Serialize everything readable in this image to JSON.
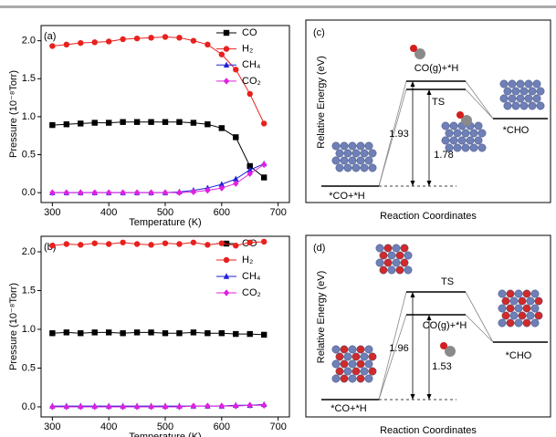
{
  "chart_data": [
    {
      "type": "line",
      "label": "(a)",
      "x_label": "Temperature (K)",
      "y_label": "Pressure (10⁻⁸Torr)",
      "x": [
        300,
        325,
        350,
        375,
        400,
        425,
        450,
        475,
        500,
        525,
        550,
        575,
        600,
        625,
        650,
        675
      ],
      "series": [
        {
          "name": "CO",
          "color": "#000000",
          "marker": "square",
          "values": [
            0.89,
            0.9,
            0.91,
            0.92,
            0.92,
            0.93,
            0.93,
            0.93,
            0.93,
            0.93,
            0.92,
            0.9,
            0.85,
            0.73,
            0.35,
            0.2
          ]
        },
        {
          "name": "H₂",
          "color": "#e8201e",
          "marker": "circle",
          "values": [
            1.93,
            1.95,
            1.97,
            1.98,
            1.99,
            2.02,
            2.03,
            2.04,
            2.05,
            2.04,
            2.0,
            1.95,
            1.82,
            1.62,
            1.3,
            0.91
          ]
        },
        {
          "name": "CH₄",
          "color": "#1f1fd6",
          "marker": "triangle",
          "values": [
            0.0,
            0.0,
            0.0,
            0.0,
            0.0,
            0.0,
            0.0,
            0.0,
            0.0,
            0.01,
            0.03,
            0.06,
            0.11,
            0.18,
            0.3,
            0.38
          ]
        },
        {
          "name": "CO₂",
          "color": "#e020e0",
          "marker": "diamond",
          "values": [
            0.0,
            0.0,
            0.0,
            0.0,
            0.0,
            0.0,
            0.0,
            0.0,
            0.0,
            0.0,
            0.01,
            0.03,
            0.06,
            0.12,
            0.25,
            0.37
          ]
        }
      ],
      "xlim": [
        280,
        720
      ],
      "ylim": [
        -0.13,
        2.2
      ],
      "xticks": [
        300,
        400,
        500,
        600,
        700
      ],
      "yticks": [
        {
          "value": 0,
          "label": "0.0"
        },
        0.5,
        {
          "value": 1,
          "label": "1.0"
        },
        1.5,
        {
          "value": 2,
          "label": "2.0"
        }
      ],
      "legend": "upper right"
    },
    {
      "type": "line",
      "label": "(b)",
      "x_label": "Temperature (K)",
      "y_label": "Pressure (10⁻⁸Torr)",
      "x": [
        300,
        325,
        350,
        375,
        400,
        425,
        450,
        475,
        500,
        525,
        550,
        575,
        600,
        625,
        650,
        675
      ],
      "series": [
        {
          "name": "CO",
          "color": "#000000",
          "marker": "square",
          "values": [
            0.95,
            0.96,
            0.95,
            0.96,
            0.96,
            0.95,
            0.96,
            0.96,
            0.95,
            0.95,
            0.96,
            0.95,
            0.95,
            0.94,
            0.94,
            0.93
          ]
        },
        {
          "name": "H₂",
          "color": "#e8201e",
          "marker": "circle",
          "values": [
            2.08,
            2.1,
            2.09,
            2.11,
            2.1,
            2.12,
            2.1,
            2.09,
            2.11,
            2.1,
            2.12,
            2.09,
            2.11,
            2.08,
            2.12,
            2.13
          ]
        },
        {
          "name": "CH₄",
          "color": "#1f1fd6",
          "marker": "triangle",
          "values": [
            0.01,
            0.01,
            0.01,
            0.01,
            0.01,
            0.01,
            0.01,
            0.01,
            0.01,
            0.01,
            0.01,
            0.01,
            0.01,
            0.02,
            0.02,
            0.03
          ]
        },
        {
          "name": "CO₂",
          "color": "#e020e0",
          "marker": "diamond",
          "values": [
            0.0,
            0.0,
            0.0,
            0.0,
            0.0,
            0.0,
            0.0,
            0.0,
            0.0,
            0.0,
            0.01,
            0.01,
            0.01,
            0.01,
            0.02,
            0.02
          ]
        }
      ],
      "xlim": [
        280,
        720
      ],
      "ylim": [
        -0.13,
        2.2
      ],
      "xticks": [
        300,
        400,
        500,
        600,
        700
      ],
      "yticks": [
        {
          "value": 0,
          "label": "0.0"
        },
        0.5,
        {
          "value": 1,
          "label": "1.0"
        },
        1.5,
        {
          "value": 2,
          "label": "2.0"
        }
      ],
      "legend": "upper right"
    }
  ],
  "diagrams": [
    {
      "label": "(c)",
      "y_label": "Relative Energy (eV)",
      "x_label": "Reaction Coordinates",
      "levels": [
        "*CO+*H",
        "CO(g)+*H",
        "TS",
        "*CHO"
      ],
      "barriers": [
        1.93,
        1.78
      ]
    },
    {
      "label": "(d)",
      "y_label": "Relative Energy (eV)",
      "x_label": "Reaction Coordinates",
      "levels": [
        "*CO+*H",
        "TS",
        "CO(g)+*H",
        "*CHO"
      ],
      "barriers": [
        1.96,
        1.53
      ]
    }
  ]
}
